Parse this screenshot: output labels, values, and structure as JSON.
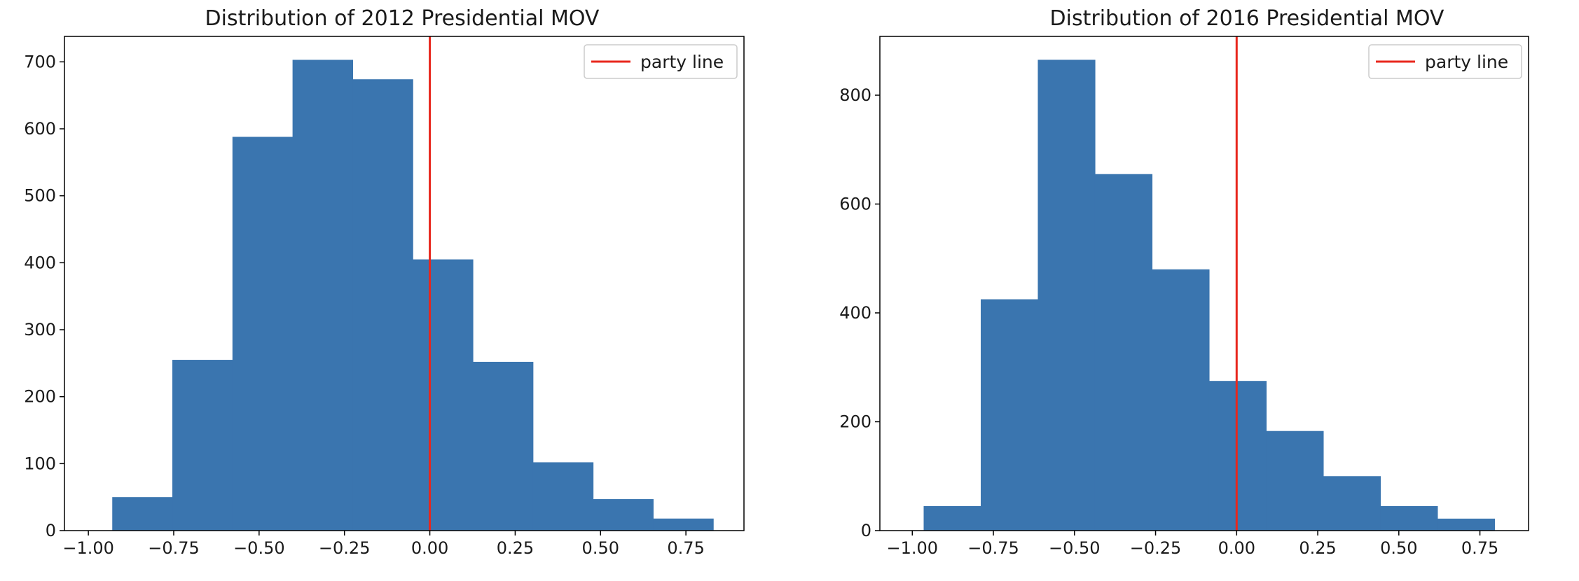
{
  "colors": {
    "bar": "#3a75af",
    "party_line": "#e8271d",
    "axis": "#000000"
  },
  "chart_data": [
    {
      "type": "bar",
      "title": "Distribution of 2012 Presidential MOV",
      "xlabel": "",
      "ylabel": "",
      "bin_edges": [
        -0.93,
        -0.754,
        -0.578,
        -0.402,
        -0.226,
        -0.05,
        0.126,
        0.302,
        0.478,
        0.654,
        0.83
      ],
      "values": [
        50,
        255,
        588,
        703,
        674,
        405,
        252,
        102,
        47,
        18
      ],
      "xlim": [
        -1.07,
        0.92
      ],
      "ylim": [
        0,
        738
      ],
      "xticks": [
        -1.0,
        -0.75,
        -0.5,
        -0.25,
        0.0,
        0.25,
        0.5,
        0.75
      ],
      "xtick_labels": [
        "−1.00",
        "−0.75",
        "−0.50",
        "−0.25",
        "0.00",
        "0.25",
        "0.50",
        "0.75"
      ],
      "yticks": [
        0,
        100,
        200,
        300,
        400,
        500,
        600,
        700
      ],
      "ytick_labels": [
        "0",
        "100",
        "200",
        "300",
        "400",
        "500",
        "600",
        "700"
      ],
      "vline": {
        "x": 0.0,
        "label": "party line"
      },
      "legend": {
        "position": "upper-right",
        "entries": [
          "party line"
        ]
      },
      "grid": false
    },
    {
      "type": "bar",
      "title": "Distribution of 2016 Presidential MOV",
      "xlabel": "",
      "ylabel": "",
      "bin_edges": [
        -0.965,
        -0.789,
        -0.613,
        -0.437,
        -0.261,
        -0.085,
        0.091,
        0.267,
        0.443,
        0.619,
        0.795
      ],
      "values": [
        45,
        425,
        865,
        655,
        480,
        275,
        183,
        100,
        45,
        22
      ],
      "xlim": [
        -1.1,
        0.9
      ],
      "ylim": [
        0,
        908
      ],
      "xticks": [
        -1.0,
        -0.75,
        -0.5,
        -0.25,
        0.0,
        0.25,
        0.5,
        0.75
      ],
      "xtick_labels": [
        "−1.00",
        "−0.75",
        "−0.50",
        "−0.25",
        "0.00",
        "0.25",
        "0.50",
        "0.75"
      ],
      "yticks": [
        0,
        200,
        400,
        600,
        800
      ],
      "ytick_labels": [
        "0",
        "200",
        "400",
        "600",
        "800"
      ],
      "vline": {
        "x": 0.0,
        "label": "party line"
      },
      "legend": {
        "position": "upper-right",
        "entries": [
          "party line"
        ]
      },
      "grid": false
    }
  ]
}
